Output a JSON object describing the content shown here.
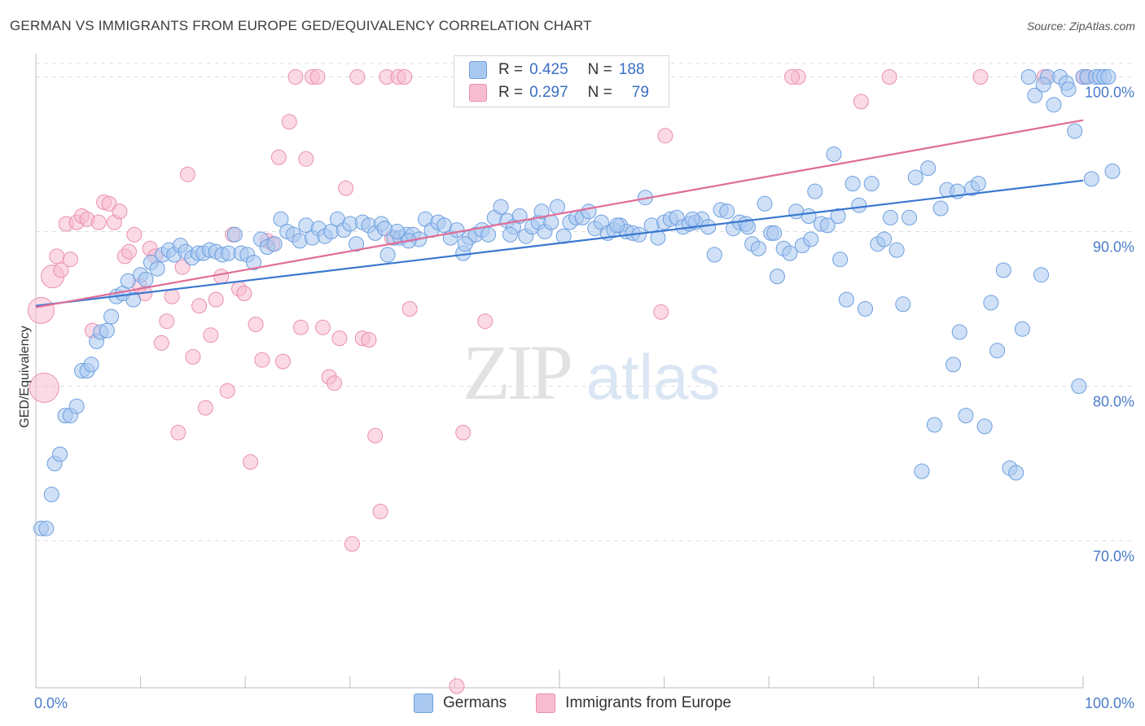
{
  "title": "GERMAN VS IMMIGRANTS FROM EUROPE GED/EQUIVALENCY CORRELATION CHART",
  "source": "Source: ZipAtlas.com",
  "watermark": {
    "zip": "ZIP",
    "atlas": "atlas"
  },
  "legend": {
    "r_label": "R =",
    "n_label": "N =",
    "rows": [
      {
        "r": "0.425",
        "n": "188"
      },
      {
        "r": "0.297",
        "n": "79"
      }
    ]
  },
  "colors": {
    "germans_fill": "#a9c8f0",
    "germans_stroke": "#6d9fdf",
    "germans_line": "#3a78d0",
    "immigrants_fill": "#f7bcd0",
    "immigrants_stroke": "#ea8fad",
    "immigrants_line": "#e06d96",
    "tick_label": "#4a7cc9",
    "grid": "#dddddd"
  },
  "chart_data": {
    "type": "scatter",
    "title": "GERMAN VS IMMIGRANTS FROM EUROPE GED/EQUIVALENCY CORRELATION CHART",
    "ylabel": "GED/Equivalency",
    "xlabel": "",
    "xlim": [
      0,
      100
    ],
    "ylim": [
      60.5,
      101.5
    ],
    "x_tick_labels": [
      {
        "v": 0,
        "label": "0.0%"
      },
      {
        "v": 100,
        "label": "100.0%"
      }
    ],
    "y_ticks": [
      {
        "v": 100,
        "label": "100.0%"
      },
      {
        "v": 90,
        "label": "90.0%"
      },
      {
        "v": 80,
        "label": "80.0%"
      },
      {
        "v": 70,
        "label": "70.0%"
      }
    ],
    "x_minor_ticks": [
      0,
      10,
      20,
      30,
      40,
      50,
      60,
      70,
      80,
      90,
      100
    ],
    "grid": true,
    "legend_position": "top-center",
    "series": [
      {
        "name": "Germans",
        "trend": [
          [
            0,
            85.2
          ],
          [
            100,
            93.3
          ]
        ],
        "points": [
          [
            0.5,
            70.8
          ],
          [
            1.0,
            70.8
          ],
          [
            1.5,
            73.0
          ],
          [
            1.8,
            75.0
          ],
          [
            2.3,
            75.6
          ],
          [
            2.8,
            78.1
          ],
          [
            3.3,
            78.1
          ],
          [
            3.9,
            78.7
          ],
          [
            4.4,
            81.0
          ],
          [
            4.9,
            81.0
          ],
          [
            5.3,
            81.4
          ],
          [
            5.8,
            82.9
          ],
          [
            6.2,
            83.5
          ],
          [
            6.8,
            83.6
          ],
          [
            7.2,
            84.5
          ],
          [
            7.7,
            85.8
          ],
          [
            8.3,
            86.0
          ],
          [
            8.8,
            86.8
          ],
          [
            9.3,
            85.6
          ],
          [
            10.0,
            87.2
          ],
          [
            10.5,
            86.9
          ],
          [
            11.0,
            88.0
          ],
          [
            11.6,
            87.6
          ],
          [
            12.1,
            88.5
          ],
          [
            12.7,
            88.8
          ],
          [
            13.2,
            88.5
          ],
          [
            13.8,
            89.1
          ],
          [
            14.3,
            88.7
          ],
          [
            14.9,
            88.3
          ],
          [
            15.5,
            88.6
          ],
          [
            16.0,
            88.6
          ],
          [
            16.6,
            88.8
          ],
          [
            17.2,
            88.7
          ],
          [
            17.8,
            88.5
          ],
          [
            18.4,
            88.6
          ],
          [
            19.0,
            89.8
          ],
          [
            19.6,
            88.6
          ],
          [
            20.2,
            88.5
          ],
          [
            20.8,
            88.0
          ],
          [
            21.5,
            89.5
          ],
          [
            22.1,
            89.0
          ],
          [
            22.8,
            89.2
          ],
          [
            23.4,
            90.8
          ],
          [
            24.0,
            90.0
          ],
          [
            24.6,
            89.8
          ],
          [
            25.2,
            89.4
          ],
          [
            25.8,
            90.4
          ],
          [
            26.4,
            89.6
          ],
          [
            27.0,
            90.2
          ],
          [
            27.6,
            89.7
          ],
          [
            28.2,
            90.0
          ],
          [
            28.8,
            90.8
          ],
          [
            29.4,
            90.1
          ],
          [
            30.0,
            90.5
          ],
          [
            30.6,
            89.2
          ],
          [
            31.2,
            90.6
          ],
          [
            31.8,
            90.4
          ],
          [
            32.4,
            89.9
          ],
          [
            33.0,
            90.5
          ],
          [
            33.6,
            88.5
          ],
          [
            34.2,
            89.6
          ],
          [
            34.8,
            89.6
          ],
          [
            35.4,
            89.8
          ],
          [
            36.0,
            89.8
          ],
          [
            36.6,
            89.5
          ],
          [
            37.2,
            90.8
          ],
          [
            37.8,
            90.1
          ],
          [
            38.4,
            90.6
          ],
          [
            39.0,
            90.4
          ],
          [
            39.6,
            89.6
          ],
          [
            40.2,
            90.1
          ],
          [
            40.8,
            88.6
          ],
          [
            41.4,
            89.6
          ],
          [
            42.0,
            89.8
          ],
          [
            42.6,
            90.1
          ],
          [
            43.2,
            89.8
          ],
          [
            43.8,
            90.9
          ],
          [
            44.4,
            91.6
          ],
          [
            45.0,
            90.7
          ],
          [
            45.6,
            90.3
          ],
          [
            46.2,
            91.0
          ],
          [
            46.8,
            89.7
          ],
          [
            47.4,
            90.3
          ],
          [
            48.0,
            90.6
          ],
          [
            48.6,
            90.0
          ],
          [
            49.2,
            90.6
          ],
          [
            49.8,
            91.6
          ],
          [
            50.4,
            89.7
          ],
          [
            51.0,
            90.6
          ],
          [
            51.6,
            90.9
          ],
          [
            52.2,
            90.9
          ],
          [
            52.8,
            91.3
          ],
          [
            53.4,
            90.2
          ],
          [
            54.0,
            90.6
          ],
          [
            54.6,
            89.9
          ],
          [
            55.2,
            90.1
          ],
          [
            55.8,
            90.4
          ],
          [
            56.4,
            90.0
          ],
          [
            57.0,
            89.9
          ],
          [
            57.6,
            89.8
          ],
          [
            58.2,
            92.2
          ],
          [
            58.8,
            90.4
          ],
          [
            59.4,
            89.6
          ],
          [
            60.0,
            90.6
          ],
          [
            60.6,
            90.8
          ],
          [
            61.2,
            90.9
          ],
          [
            61.8,
            90.3
          ],
          [
            62.4,
            90.5
          ],
          [
            63.0,
            90.6
          ],
          [
            63.6,
            90.8
          ],
          [
            64.2,
            90.3
          ],
          [
            64.8,
            88.5
          ],
          [
            65.4,
            91.4
          ],
          [
            66.0,
            91.3
          ],
          [
            66.6,
            90.2
          ],
          [
            67.2,
            90.6
          ],
          [
            67.8,
            90.5
          ],
          [
            68.4,
            89.2
          ],
          [
            69.0,
            88.9
          ],
          [
            69.6,
            91.8
          ],
          [
            70.2,
            89.9
          ],
          [
            70.8,
            87.1
          ],
          [
            71.4,
            88.9
          ],
          [
            72.0,
            88.6
          ],
          [
            72.6,
            91.3
          ],
          [
            73.2,
            89.1
          ],
          [
            73.8,
            91.0
          ],
          [
            74.4,
            92.6
          ],
          [
            75.0,
            90.5
          ],
          [
            75.6,
            90.4
          ],
          [
            76.2,
            95.0
          ],
          [
            76.8,
            88.2
          ],
          [
            77.4,
            85.6
          ],
          [
            78.0,
            93.1
          ],
          [
            78.6,
            91.7
          ],
          [
            79.2,
            85.0
          ],
          [
            79.8,
            93.1
          ],
          [
            80.4,
            89.2
          ],
          [
            81.0,
            89.5
          ],
          [
            81.6,
            90.9
          ],
          [
            82.2,
            88.8
          ],
          [
            82.8,
            85.3
          ],
          [
            83.4,
            90.9
          ],
          [
            84.0,
            93.5
          ],
          [
            84.6,
            74.5
          ],
          [
            85.2,
            94.1
          ],
          [
            85.8,
            77.5
          ],
          [
            86.4,
            91.5
          ],
          [
            87.0,
            92.7
          ],
          [
            87.6,
            81.4
          ],
          [
            88.2,
            83.5
          ],
          [
            88.8,
            78.1
          ],
          [
            89.4,
            92.8
          ],
          [
            90.0,
            93.1
          ],
          [
            90.6,
            77.4
          ],
          [
            91.2,
            85.4
          ],
          [
            91.8,
            82.3
          ],
          [
            92.4,
            87.5
          ],
          [
            93.0,
            74.7
          ],
          [
            93.6,
            74.4
          ],
          [
            94.2,
            83.7
          ],
          [
            94.8,
            100.0
          ],
          [
            95.4,
            98.8
          ],
          [
            96.0,
            87.2
          ],
          [
            96.6,
            100.0
          ],
          [
            97.2,
            98.2
          ],
          [
            97.8,
            100.0
          ],
          [
            98.4,
            99.6
          ],
          [
            98.6,
            99.2
          ],
          [
            99.2,
            96.5
          ],
          [
            99.6,
            80.0
          ],
          [
            100.0,
            100.0
          ],
          [
            100.4,
            100.0
          ],
          [
            100.8,
            93.4
          ],
          [
            101.2,
            100.0
          ],
          [
            101.6,
            100.0
          ],
          [
            102.0,
            100.0
          ],
          [
            102.4,
            100.0
          ],
          [
            102.8,
            93.9
          ],
          [
            96.2,
            99.5
          ],
          [
            88.0,
            92.6
          ],
          [
            76.6,
            91.0
          ],
          [
            70.5,
            89.9
          ],
          [
            74.0,
            89.5
          ],
          [
            68.0,
            90.3
          ],
          [
            62.7,
            90.8
          ],
          [
            55.5,
            90.4
          ],
          [
            48.3,
            91.3
          ],
          [
            45.3,
            89.8
          ],
          [
            41.0,
            89.2
          ],
          [
            35.6,
            89.4
          ],
          [
            34.5,
            90.0
          ],
          [
            33.3,
            90.2
          ]
        ]
      },
      {
        "name": "Immigrants from Europe",
        "trend": [
          [
            0,
            85.1
          ],
          [
            100,
            97.2
          ]
        ],
        "points": [
          [
            0.5,
            84.9
          ],
          [
            0.8,
            79.9
          ],
          [
            1.6,
            87.1
          ],
          [
            2.0,
            88.4
          ],
          [
            2.4,
            87.5
          ],
          [
            2.9,
            90.5
          ],
          [
            3.3,
            88.2
          ],
          [
            3.9,
            90.6
          ],
          [
            4.4,
            91.0
          ],
          [
            4.9,
            90.8
          ],
          [
            5.4,
            83.6
          ],
          [
            6.0,
            90.6
          ],
          [
            6.5,
            91.9
          ],
          [
            7.0,
            91.8
          ],
          [
            7.5,
            90.6
          ],
          [
            8.0,
            91.3
          ],
          [
            8.5,
            88.4
          ],
          [
            8.9,
            88.7
          ],
          [
            9.4,
            89.8
          ],
          [
            9.9,
            86.5
          ],
          [
            10.4,
            86.0
          ],
          [
            10.9,
            88.9
          ],
          [
            11.4,
            88.4
          ],
          [
            12.0,
            82.8
          ],
          [
            12.5,
            84.2
          ],
          [
            13.0,
            85.8
          ],
          [
            13.6,
            77.0
          ],
          [
            14.0,
            87.7
          ],
          [
            14.5,
            93.7
          ],
          [
            15.0,
            81.9
          ],
          [
            15.6,
            85.2
          ],
          [
            16.2,
            78.6
          ],
          [
            16.7,
            83.3
          ],
          [
            17.2,
            85.6
          ],
          [
            17.7,
            87.1
          ],
          [
            18.3,
            79.7
          ],
          [
            18.8,
            89.8
          ],
          [
            19.4,
            86.3
          ],
          [
            19.9,
            86.0
          ],
          [
            20.5,
            75.1
          ],
          [
            21.0,
            84.0
          ],
          [
            21.6,
            81.7
          ],
          [
            22.1,
            89.4
          ],
          [
            22.6,
            89.2
          ],
          [
            23.2,
            94.8
          ],
          [
            23.6,
            81.6
          ],
          [
            24.2,
            97.1
          ],
          [
            24.8,
            100.0
          ],
          [
            25.3,
            83.8
          ],
          [
            25.8,
            94.7
          ],
          [
            26.4,
            100.0
          ],
          [
            26.9,
            100.0
          ],
          [
            27.4,
            83.8
          ],
          [
            28.0,
            80.6
          ],
          [
            28.5,
            80.2
          ],
          [
            29.0,
            83.1
          ],
          [
            29.6,
            92.8
          ],
          [
            30.2,
            69.8
          ],
          [
            30.7,
            100.0
          ],
          [
            31.2,
            83.1
          ],
          [
            31.8,
            83.0
          ],
          [
            32.4,
            76.8
          ],
          [
            32.9,
            71.9
          ],
          [
            33.5,
            100.0
          ],
          [
            34.0,
            89.6
          ],
          [
            34.6,
            100.0
          ],
          [
            35.2,
            100.0
          ],
          [
            35.7,
            85.0
          ],
          [
            40.2,
            60.6
          ],
          [
            40.8,
            77.0
          ],
          [
            42.9,
            84.2
          ],
          [
            56.6,
            100.0
          ],
          [
            56.9,
            100.0
          ],
          [
            57.4,
            100.0
          ],
          [
            58.9,
            100.0
          ],
          [
            59.7,
            84.8
          ],
          [
            60.1,
            96.2
          ],
          [
            72.8,
            100.0
          ],
          [
            72.2,
            100.0
          ],
          [
            78.8,
            98.4
          ],
          [
            81.5,
            100.0
          ],
          [
            90.2,
            100.0
          ],
          [
            96.3,
            100.0
          ],
          [
            100.3,
            100.0
          ],
          [
            100.0,
            100.0
          ]
        ]
      }
    ]
  },
  "bottom_legend": [
    {
      "label": "Germans"
    },
    {
      "label": "Immigrants from Europe"
    }
  ]
}
